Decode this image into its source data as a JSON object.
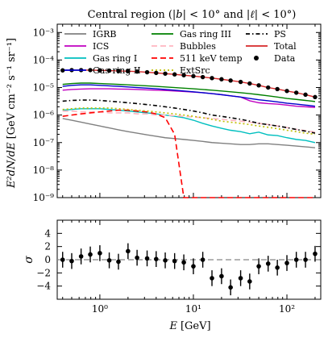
{
  "chart_data": [
    {
      "type": "line",
      "title": "Central region (|b| < 10° and |ℓ| < 10°)",
      "ylabel": "E²dN/dE [GeV cm⁻² s⁻¹ sr⁻¹]",
      "xscale": "log",
      "yscale": "log",
      "xlim": [
        0.35,
        230
      ],
      "ylim": [
        1e-09,
        0.002
      ],
      "x_tick_labels": [
        "10⁰",
        "10¹",
        "10²"
      ],
      "y_tick_labels": [
        "10⁻⁹",
        "10⁻⁸",
        "10⁻⁷",
        "10⁻⁶",
        "10⁻⁵",
        "10⁻⁴",
        "10⁻³"
      ],
      "legend_position": "top",
      "x": [
        0.4,
        0.5,
        0.63,
        0.79,
        1.0,
        1.26,
        1.58,
        2.0,
        2.5,
        3.2,
        4.0,
        5.0,
        6.3,
        7.9,
        10,
        12.6,
        15.8,
        20,
        25,
        32,
        40,
        50,
        63,
        79,
        100,
        126,
        158,
        200
      ],
      "series": [
        {
          "name": "IGRB",
          "color": "#808080",
          "style": "solid",
          "values": [
            7.5e-07,
            6.5e-07,
            5.5e-07,
            4.7e-07,
            4e-07,
            3.4e-07,
            2.9e-07,
            2.5e-07,
            2.2e-07,
            1.9e-07,
            1.7e-07,
            1.5e-07,
            1.4e-07,
            1.3e-07,
            1.2e-07,
            1.1e-07,
            1e-07,
            9.5e-08,
            9e-08,
            8.5e-08,
            8.5e-08,
            9e-08,
            9e-08,
            8.5e-08,
            8e-08,
            7.5e-08,
            7e-08,
            6.5e-08
          ]
        },
        {
          "name": "ICS",
          "color": "#c000c0",
          "style": "solid",
          "values": [
            8e-06,
            8.5e-06,
            8.8e-06,
            9e-06,
            9e-06,
            9e-06,
            8.8e-06,
            8.7e-06,
            8.5e-06,
            8.2e-06,
            8e-06,
            7.8e-06,
            7.5e-06,
            7.2e-06,
            6.8e-06,
            6.5e-06,
            6e-06,
            5.5e-06,
            5e-06,
            4.5e-06,
            3.3e-06,
            2.8e-06,
            2.6e-06,
            2.5e-06,
            2.3e-06,
            2.1e-06,
            2e-06,
            1.9e-06
          ]
        },
        {
          "name": "Gas ring I",
          "color": "#00bfbf",
          "style": "solid",
          "values": [
            1.5e-06,
            1.6e-06,
            1.7e-06,
            1.7e-06,
            1.7e-06,
            1.6e-06,
            1.5e-06,
            1.4e-06,
            1.3e-06,
            1.2e-06,
            1.1e-06,
            1e-06,
            9e-07,
            8e-07,
            6.5e-07,
            5e-07,
            4e-07,
            3.3e-07,
            2.8e-07,
            2.5e-07,
            2.1e-07,
            2.4e-07,
            1.9e-07,
            1.8e-07,
            1.5e-07,
            1.3e-07,
            1.2e-07,
            1e-07
          ]
        },
        {
          "name": "Gas ring II",
          "color": "#0000cc",
          "style": "solid",
          "values": [
            1.1e-05,
            1.2e-05,
            1.25e-05,
            1.25e-05,
            1.2e-05,
            1.15e-05,
            1.1e-05,
            1.05e-05,
            1e-05,
            9.5e-06,
            9e-06,
            8.5e-06,
            8e-06,
            7.5e-06,
            7e-06,
            6.5e-06,
            6e-06,
            5.5e-06,
            5e-06,
            4.5e-06,
            4e-06,
            3.6e-06,
            3.3e-06,
            3e-06,
            2.7e-06,
            2.5e-06,
            2.3e-06,
            2.1e-06
          ]
        },
        {
          "name": "Gas ring III",
          "color": "#008000",
          "style": "solid",
          "values": [
            1.3e-05,
            1.4e-05,
            1.45e-05,
            1.45e-05,
            1.4e-05,
            1.35e-05,
            1.3e-05,
            1.25e-05,
            1.2e-05,
            1.15e-05,
            1.1e-05,
            1.05e-05,
            1e-05,
            9.5e-06,
            9e-06,
            8.5e-06,
            8e-06,
            7.5e-06,
            7e-06,
            6.5e-06,
            6e-06,
            5.5e-06,
            5e-06,
            4.5e-06,
            4e-06,
            3.7e-06,
            3.4e-06,
            3.1e-06
          ]
        },
        {
          "name": "Bubbles",
          "color": "#ffb6c1",
          "style": "dashed",
          "values": [
            1.4e-06,
            1.4e-06,
            1.3e-06,
            1.3e-06,
            1.3e-06,
            1.2e-06,
            1.2e-06,
            1.2e-06,
            1.1e-06,
            1.1e-06,
            1e-06,
            1e-06,
            9.5e-07,
            9e-07,
            8.5e-07,
            8e-07,
            7.5e-07,
            7e-07,
            6.5e-07,
            6e-07,
            5.5e-07,
            5e-07,
            4.5e-07,
            4e-07,
            3.5e-07,
            3e-07,
            2.7e-07,
            2.4e-07
          ]
        },
        {
          "name": "511 keV temp",
          "color": "#ff0000",
          "style": "dashed",
          "values": [
            9e-07,
            1e-06,
            1.1e-06,
            1.2e-06,
            1.3e-06,
            1.4e-06,
            1.5e-06,
            1.5e-06,
            1.4e-06,
            1.3e-06,
            1.1e-06,
            8e-07,
            2e-07,
            1e-09,
            1e-09,
            1e-09,
            1e-09,
            1e-09,
            1e-09,
            1e-09,
            1e-09,
            1e-09,
            1e-09,
            1e-09,
            1e-09,
            1e-09,
            1e-09,
            1e-09
          ]
        },
        {
          "name": "ExtSrc",
          "color": "#bfbf00",
          "style": "dotted",
          "values": [
            1.6e-06,
            1.7e-06,
            1.8e-06,
            1.8e-06,
            1.8e-06,
            1.8e-06,
            1.7e-06,
            1.6e-06,
            1.5e-06,
            1.4e-06,
            1.3e-06,
            1.2e-06,
            1.1e-06,
            1e-06,
            9e-07,
            8e-07,
            7e-07,
            6e-07,
            5.5e-07,
            5e-07,
            4.5e-07,
            4e-07,
            3.6e-07,
            3.2e-07,
            2.8e-07,
            2.5e-07,
            2.2e-07,
            2e-07
          ]
        },
        {
          "name": "PS",
          "color": "#000000",
          "style": "dotdash",
          "values": [
            3.2e-06,
            3.4e-06,
            3.5e-06,
            3.5e-06,
            3.4e-06,
            3.2e-06,
            3e-06,
            2.8e-06,
            2.6e-06,
            2.4e-06,
            2.2e-06,
            2e-06,
            1.8e-06,
            1.6e-06,
            1.4e-06,
            1.2e-06,
            1e-06,
            9e-07,
            8e-07,
            7e-07,
            6e-07,
            5e-07,
            4.5e-07,
            4e-07,
            3.5e-07,
            3e-07,
            2.6e-07,
            2.2e-07
          ]
        },
        {
          "name": "Total",
          "color": "#d62728",
          "style": "solid",
          "values": [
            4.2e-05,
            4.3e-05,
            4.3e-05,
            4.3e-05,
            4.2e-05,
            4.1e-05,
            4e-05,
            3.9e-05,
            3.8e-05,
            3.6e-05,
            3.4e-05,
            3.2e-05,
            3e-05,
            2.8e-05,
            2.6e-05,
            2.4e-05,
            2.2e-05,
            2e-05,
            1.8e-05,
            1.6e-05,
            1.4e-05,
            1.2e-05,
            1e-05,
            8.8e-06,
            7.5e-06,
            6.5e-06,
            5.5e-06,
            4.5e-06
          ]
        },
        {
          "name": "Data",
          "color": "#000000",
          "style": "points",
          "values": [
            4.2e-05,
            4.3e-05,
            4.3e-05,
            4.3e-05,
            4.2e-05,
            4.1e-05,
            4e-05,
            3.9e-05,
            3.8e-05,
            3.6e-05,
            3.4e-05,
            3.2e-05,
            3e-05,
            2.8e-05,
            2.6e-05,
            2.4e-05,
            2.2e-05,
            2e-05,
            1.8e-05,
            1.6e-05,
            1.4e-05,
            1.2e-05,
            1e-05,
            8.8e-06,
            7.5e-06,
            6.5e-06,
            5.5e-06,
            4.5e-06
          ]
        }
      ]
    },
    {
      "type": "scatter",
      "xlabel": "E [GeV]",
      "ylabel": "σ",
      "xscale": "log",
      "xlim": [
        0.35,
        230
      ],
      "ylim": [
        -6,
        6
      ],
      "y_ticks": [
        4,
        2,
        0,
        -2,
        -4
      ],
      "y_tick_labels": [
        "4",
        "2",
        "0",
        "−2",
        "−4"
      ],
      "x_tick_labels": [
        "10⁰",
        "10¹",
        "10²"
      ],
      "reference_line": 0,
      "x": [
        0.4,
        0.5,
        0.63,
        0.79,
        1.0,
        1.26,
        1.58,
        2.0,
        2.5,
        3.2,
        4.0,
        5.0,
        6.3,
        7.9,
        10,
        12.6,
        15.8,
        20,
        25,
        32,
        40,
        50,
        63,
        79,
        100,
        126,
        158,
        200
      ],
      "values": [
        0.0,
        -0.2,
        0.5,
        0.8,
        1.0,
        -0.1,
        -0.3,
        1.3,
        0.3,
        0.2,
        0.1,
        -0.1,
        -0.2,
        -0.4,
        -1.0,
        0.0,
        -2.8,
        -2.5,
        -4.2,
        -2.8,
        -3.3,
        -1.0,
        -0.6,
        -1.2,
        -0.5,
        0.0,
        0.0,
        0.9
      ],
      "errors": [
        1.2,
        1.2,
        1.2,
        1.2,
        1.2,
        1.2,
        1.2,
        1.2,
        1.2,
        1.2,
        1.2,
        1.2,
        1.2,
        1.2,
        1.2,
        1.2,
        1.2,
        1.2,
        1.2,
        1.2,
        1.2,
        1.2,
        1.2,
        1.2,
        1.2,
        1.2,
        1.2,
        1.2
      ]
    }
  ],
  "title_parts": {
    "prefix": "Central region (|",
    "b": "b",
    "mid": "| < 10° and |",
    "l": "ℓ",
    "suffix": "| < 10°)"
  },
  "axis_text": {
    "top_ylabel_main": "E²dN/dE",
    "top_ylabel_unit": "[GeV cm⁻² s⁻¹ sr⁻¹]",
    "bottom_ylabel": "σ",
    "xlabel_var": "E",
    "xlabel_unit": "[GeV]"
  }
}
